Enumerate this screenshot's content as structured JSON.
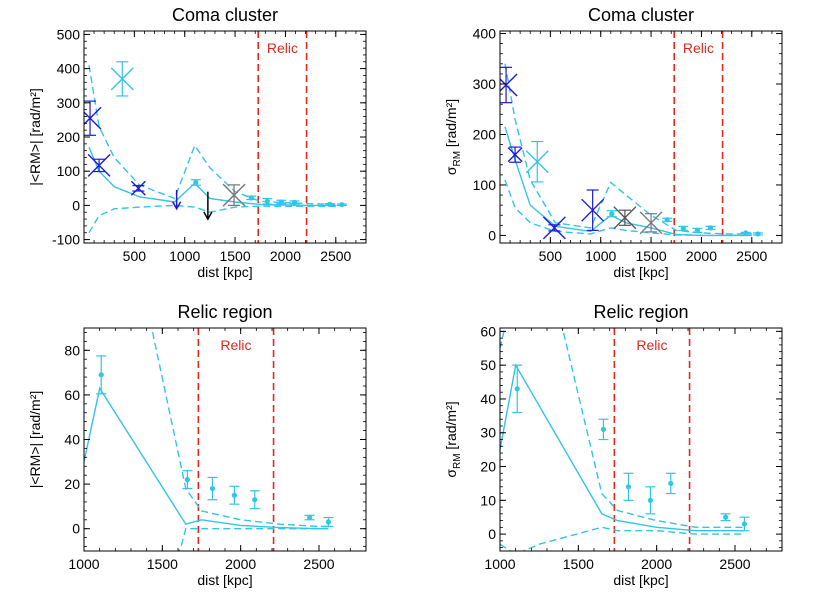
{
  "chart_data": [
    {
      "type": "scatter",
      "title": "Coma cluster",
      "xlabel": "dist [kpc]",
      "ylabel": "|<RM>| [rad/m²]",
      "xlim": [
        0,
        2800
      ],
      "ylim": [
        -110,
        510
      ],
      "xticks": [
        500,
        1000,
        1500,
        2000,
        2500
      ],
      "yticks": [
        -100,
        0,
        100,
        200,
        300,
        400,
        500
      ],
      "relic_label": "Relic",
      "relic_x": [
        1730,
        2210
      ],
      "model_lines": {
        "center": {
          "x": [
            50,
            150,
            300,
            550,
            900,
            1100,
            1250,
            1500,
            1750,
            2000,
            2250,
            2500
          ],
          "y": [
            170,
            100,
            55,
            25,
            10,
            65,
            20,
            10,
            3,
            1,
            0,
            0
          ]
        },
        "upper": {
          "x": [
            50,
            150,
            300,
            550,
            900,
            1100,
            1250,
            1500,
            1750,
            2000,
            2250,
            2500
          ],
          "y": [
            410,
            230,
            140,
            60,
            20,
            175,
            110,
            40,
            12,
            8,
            5,
            3
          ]
        },
        "lower": {
          "x": [
            50,
            150,
            300,
            550,
            900,
            1100,
            1250,
            1500,
            1750,
            2000,
            2250,
            2500
          ],
          "y": [
            -80,
            -30,
            -10,
            -5,
            0,
            -5,
            -20,
            -5,
            -2,
            -3,
            -2,
            -3
          ]
        }
      },
      "points": [
        {
          "x": 60,
          "y": 255,
          "yerr": 50,
          "size": "large",
          "color": "#1c1cd0"
        },
        {
          "x": 150,
          "y": 117,
          "yerr": 18,
          "size": "large",
          "color": "#1c1cd0"
        },
        {
          "x": 380,
          "y": 370,
          "yerr": 50,
          "size": "large",
          "color": "#33c4e8"
        },
        {
          "x": 540,
          "y": 50,
          "yerr": 8,
          "size": "medium",
          "color": "#1c1cd0"
        },
        {
          "x": 1110,
          "y": 67,
          "yerr": 8,
          "size": "dot",
          "color": "#33c4e8"
        },
        {
          "x": 1490,
          "y": 30,
          "yerr": 30,
          "size": "large",
          "color": "#777777"
        },
        {
          "x": 1660,
          "y": 22,
          "yerr": 5,
          "size": "dot",
          "color": "#33c4e8"
        },
        {
          "x": 1820,
          "y": 12,
          "yerr": 8,
          "size": "dot",
          "color": "#33c4e8"
        },
        {
          "x": 1960,
          "y": 10,
          "yerr": 5,
          "size": "dot",
          "color": "#33c4e8"
        },
        {
          "x": 2090,
          "y": 9,
          "yerr": 4,
          "size": "dot",
          "color": "#33c4e8"
        },
        {
          "x": 2440,
          "y": 3,
          "yerr": 2,
          "size": "dot",
          "color": "#33c4e8"
        },
        {
          "x": 2560,
          "y": 2,
          "yerr": 2,
          "size": "dot",
          "color": "#33c4e8"
        }
      ],
      "upper_limits": [
        {
          "x": 920,
          "y_top": 45,
          "y_bottom": -10,
          "color": "#1c1cd0"
        },
        {
          "x": 1230,
          "y_top": 40,
          "y_bottom": -40,
          "color": "#000000"
        }
      ]
    },
    {
      "type": "scatter",
      "title": "Coma cluster",
      "xlabel": "dist [kpc]",
      "ylabel_main": "σ",
      "ylabel_sub": "RM",
      "ylabel_rest": " [rad/m²]",
      "xlim": [
        0,
        2800
      ],
      "ylim": [
        -15,
        405
      ],
      "xticks": [
        500,
        1000,
        1500,
        2000,
        2500
      ],
      "yticks": [
        0,
        100,
        200,
        300,
        400
      ],
      "relic_label": "Relic",
      "relic_x": [
        1730,
        2210
      ],
      "model_lines": {
        "center": {
          "x": [
            50,
            150,
            300,
            550,
            900,
            1100,
            1250,
            1500,
            1750,
            2000,
            2250,
            2500
          ],
          "y": [
            215,
            150,
            60,
            18,
            8,
            40,
            25,
            15,
            2,
            0,
            0,
            0
          ]
        },
        "upper": {
          "x": [
            50,
            150,
            300,
            550,
            900,
            1100,
            1250,
            1500,
            1750,
            2000,
            2250,
            2500
          ],
          "y": [
            340,
            230,
            110,
            25,
            15,
            105,
            80,
            40,
            10,
            5,
            3,
            3
          ]
        },
        "lower": {
          "x": [
            50,
            150,
            300,
            550,
            900,
            1100,
            1250,
            1500,
            1750,
            2000,
            2250,
            2500
          ],
          "y": [
            110,
            55,
            25,
            8,
            3,
            15,
            10,
            5,
            1,
            0,
            0,
            0
          ]
        }
      },
      "points": [
        {
          "x": 60,
          "y": 298,
          "yerr": 35,
          "size": "large",
          "color": "#1c1cd0"
        },
        {
          "x": 150,
          "y": 160,
          "yerr": 15,
          "size": "medium",
          "color": "#1c1cd0"
        },
        {
          "x": 370,
          "y": 146,
          "yerr": 40,
          "size": "large",
          "color": "#33c4e8"
        },
        {
          "x": 540,
          "y": 15,
          "yerr": 6,
          "size": "large",
          "color": "#1c1cd0"
        },
        {
          "x": 920,
          "y": 50,
          "yerr": 40,
          "size": "large",
          "color": "#1c1cd0"
        },
        {
          "x": 1110,
          "y": 43,
          "yerr": 6,
          "size": "dot",
          "color": "#33c4e8"
        },
        {
          "x": 1240,
          "y": 35,
          "yerr": 15,
          "size": "large",
          "color": "#555555"
        },
        {
          "x": 1500,
          "y": 25,
          "yerr": 18,
          "size": "large",
          "color": "#777777"
        },
        {
          "x": 1660,
          "y": 31,
          "yerr": 3,
          "size": "dot",
          "color": "#33c4e8"
        },
        {
          "x": 1820,
          "y": 14,
          "yerr": 4,
          "size": "dot",
          "color": "#33c4e8"
        },
        {
          "x": 1960,
          "y": 10,
          "yerr": 4,
          "size": "dot",
          "color": "#33c4e8"
        },
        {
          "x": 2090,
          "y": 15,
          "yerr": 3,
          "size": "dot",
          "color": "#33c4e8"
        },
        {
          "x": 2440,
          "y": 5,
          "yerr": 1,
          "size": "dot",
          "color": "#33c4e8"
        },
        {
          "x": 2560,
          "y": 3,
          "yerr": 2,
          "size": "dot",
          "color": "#33c4e8"
        }
      ],
      "upper_limits": []
    },
    {
      "type": "scatter",
      "title": "Relic region",
      "xlabel": "dist [kpc]",
      "ylabel": "|<RM>| [rad/m²]",
      "xlim": [
        1000,
        2800
      ],
      "ylim": [
        -10,
        90
      ],
      "xticks": [
        1000,
        1500,
        2000,
        2500
      ],
      "yticks": [
        0,
        20,
        40,
        60,
        80
      ],
      "relic_label": "Relic",
      "relic_x": [
        1730,
        2210
      ],
      "model_lines": {
        "center": {
          "x": [
            1000,
            1100,
            1650,
            1750,
            2000,
            2250,
            2500,
            2560
          ],
          "y": [
            30,
            63,
            2,
            4,
            1.5,
            0.5,
            0,
            0
          ]
        },
        "upper": {
          "x": [
            1000,
            1100,
            1250,
            1650,
            1750,
            2000,
            2250,
            2500,
            2560
          ],
          "y": [
            90,
            140,
            150,
            18,
            8,
            4,
            2,
            1,
            1
          ]
        },
        "lower": {
          "x": [
            1590,
            1620,
            1650,
            1750,
            2000,
            2250,
            2500,
            2560
          ],
          "y": [
            -12,
            -8,
            0,
            0,
            0,
            0,
            0,
            0
          ]
        }
      },
      "points": [
        {
          "x": 1110,
          "y": 69,
          "yerr": 8.5,
          "size": "dot",
          "color": "#33c4e8"
        },
        {
          "x": 1660,
          "y": 22,
          "yerr": 4,
          "size": "dot",
          "color": "#33c4e8"
        },
        {
          "x": 1820,
          "y": 18,
          "yerr": 5,
          "size": "dot",
          "color": "#33c4e8"
        },
        {
          "x": 1960,
          "y": 15,
          "yerr": 4,
          "size": "dot",
          "color": "#33c4e8"
        },
        {
          "x": 2090,
          "y": 13,
          "yerr": 4,
          "size": "dot",
          "color": "#33c4e8"
        },
        {
          "x": 2440,
          "y": 5,
          "yerr": 1,
          "size": "dot",
          "color": "#33c4e8"
        },
        {
          "x": 2560,
          "y": 3,
          "yerr": 2,
          "size": "dot",
          "color": "#33c4e8"
        }
      ],
      "upper_limits": []
    },
    {
      "type": "scatter",
      "title": "Relic region",
      "xlabel": "dist [kpc]",
      "ylabel_main": "σ",
      "ylabel_sub": "RM",
      "ylabel_rest": " [rad/m²]",
      "xlim": [
        1000,
        2800
      ],
      "ylim": [
        -5,
        61
      ],
      "xticks": [
        1000,
        1500,
        2000,
        2500
      ],
      "yticks": [
        0,
        10,
        20,
        30,
        40,
        50,
        60
      ],
      "relic_label": "Relic",
      "relic_x": [
        1730,
        2210
      ],
      "model_lines": {
        "center": {
          "x": [
            1000,
            1100,
            1650,
            1750,
            2000,
            2250,
            2500,
            2560
          ],
          "y": [
            25,
            50,
            6,
            4,
            2,
            1,
            1,
            1
          ]
        },
        "upper": {
          "x": [
            1000,
            1100,
            1250,
            1650,
            1750,
            2000,
            2250,
            2500,
            2560
          ],
          "y": [
            55,
            75,
            90,
            12,
            7,
            4,
            2,
            2,
            2
          ]
        },
        "lower": {
          "x": [
            1000,
            1100,
            1250,
            1650,
            1750,
            2000,
            2250,
            2500,
            2560
          ],
          "y": [
            -3,
            -6,
            -3,
            2,
            1,
            1,
            0,
            0,
            0
          ]
        }
      },
      "points": [
        {
          "x": 1110,
          "y": 43,
          "yerr": 7,
          "size": "dot",
          "color": "#33c4e8"
        },
        {
          "x": 1660,
          "y": 31,
          "yerr": 3,
          "size": "dot",
          "color": "#33c4e8"
        },
        {
          "x": 1820,
          "y": 14,
          "yerr": 4,
          "size": "dot",
          "color": "#33c4e8"
        },
        {
          "x": 1960,
          "y": 10,
          "yerr": 4,
          "size": "dot",
          "color": "#33c4e8"
        },
        {
          "x": 2090,
          "y": 15,
          "yerr": 3,
          "size": "dot",
          "color": "#33c4e8"
        },
        {
          "x": 2440,
          "y": 5,
          "yerr": 1,
          "size": "dot",
          "color": "#33c4e8"
        },
        {
          "x": 2560,
          "y": 3,
          "yerr": 2,
          "size": "dot",
          "color": "#33c4e8"
        }
      ],
      "upper_limits": []
    }
  ],
  "colors": {
    "model": "#33c4e8",
    "relic": "#e0281e",
    "axis": "#000000"
  }
}
